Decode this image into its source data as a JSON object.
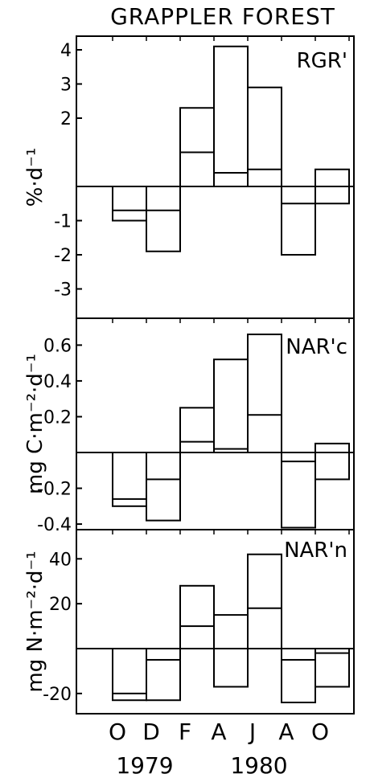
{
  "figure_title": "GRAPPLER FOREST",
  "x_axis": {
    "month_labels": [
      "O",
      "D",
      "F",
      "A",
      "J",
      "A",
      "O"
    ],
    "year_labels": [
      "1979",
      "1980"
    ]
  },
  "chart_data": [
    {
      "type": "bar",
      "panel_label": "RGR'",
      "ylabel": "%·d⁻¹",
      "ylim": [
        -4,
        4.4
      ],
      "yticks": [
        -3,
        -2,
        -1,
        2,
        3,
        4
      ],
      "categories": [
        "O",
        "D",
        "F",
        "A",
        "J",
        "A",
        "O"
      ],
      "series": [
        {
          "values": [
            -1.0,
            -1.9,
            2.3,
            4.1,
            2.9,
            -2.0,
            0.5
          ]
        },
        {
          "values": [
            -0.7,
            -0.7,
            1.0,
            0.4,
            0.5,
            -0.5,
            -0.5
          ]
        }
      ]
    },
    {
      "type": "bar",
      "panel_label": "NAR'c",
      "ylabel": "mg C·m⁻²·d⁻¹",
      "ylim": [
        -0.5,
        0.75
      ],
      "yticks": [
        -0.4,
        -0.2,
        0.2,
        0.4,
        0.6
      ],
      "categories": [
        "O",
        "D",
        "F",
        "A",
        "J",
        "A",
        "O"
      ],
      "series": [
        {
          "values": [
            -0.3,
            -0.38,
            0.25,
            0.52,
            0.66,
            -0.42,
            0.05
          ]
        },
        {
          "values": [
            -0.26,
            -0.15,
            0.06,
            0.02,
            0.21,
            -0.05,
            -0.15
          ]
        }
      ]
    },
    {
      "type": "bar",
      "panel_label": "NAR'n",
      "ylabel": "mg N·m⁻²·d⁻¹",
      "ylim": [
        -33,
        53
      ],
      "yticks": [
        -20,
        20,
        40
      ],
      "categories": [
        "O",
        "D",
        "F",
        "A",
        "J",
        "A",
        "O"
      ],
      "series": [
        {
          "values": [
            -23,
            -23,
            28,
            15,
            42,
            -24,
            -17
          ]
        },
        {
          "values": [
            -20,
            -5,
            10,
            -17,
            18,
            -5,
            -2
          ]
        }
      ]
    }
  ]
}
